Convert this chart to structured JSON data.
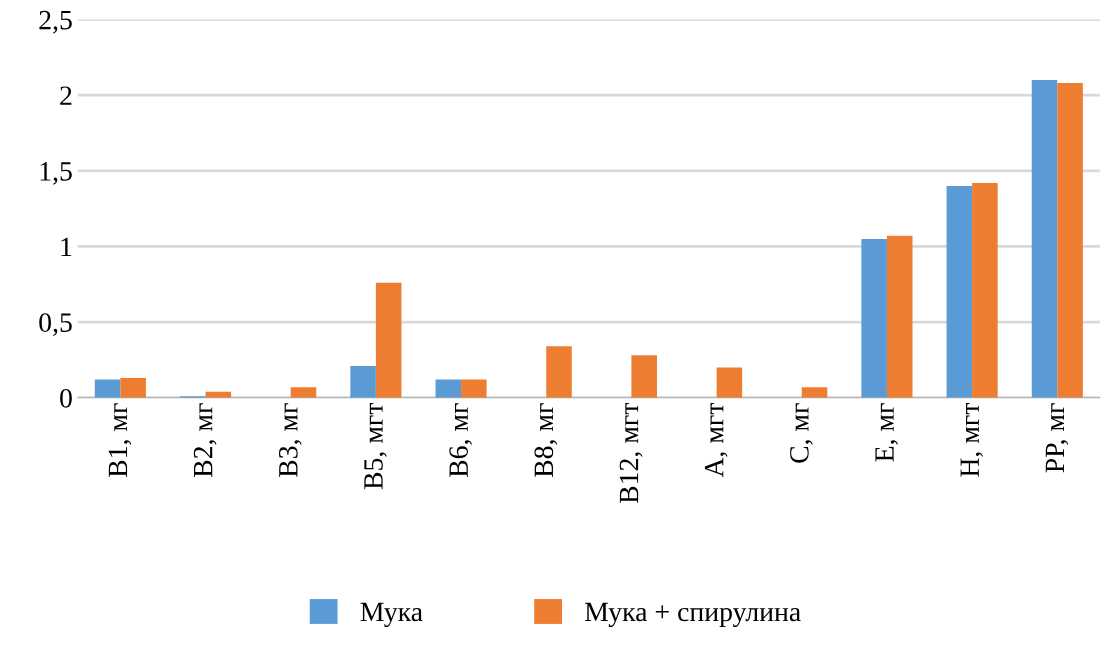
{
  "chart_data": {
    "type": "bar",
    "categories": [
      "B1, мг",
      "B2, мг",
      "B3, мг",
      "B5, мгт",
      "B6, мг",
      "B8, мг",
      "B12, мгт",
      "A, мгт",
      "C, мг",
      "E, мг",
      "H, мгт",
      "PP, мг"
    ],
    "series": [
      {
        "name": "Мука",
        "color": "#5b9bd5",
        "values": [
          0.12,
          0.01,
          0,
          0.21,
          0.12,
          0,
          0,
          0,
          0,
          1.05,
          1.4,
          2.1
        ]
      },
      {
        "name": "Мука + спирулина",
        "color": "#ed7d31",
        "values": [
          0.13,
          0.04,
          0.07,
          0.76,
          0.12,
          0.34,
          0.28,
          0.2,
          0.07,
          1.07,
          1.42,
          2.08
        ]
      }
    ],
    "ylim": [
      0,
      2.5
    ],
    "yticks": [
      0,
      {
        "value": 0.5,
        "label": "0,5"
      },
      1,
      {
        "value": 1.5,
        "label": "1,5"
      },
      2,
      {
        "value": 2.5,
        "label": "2,5"
      }
    ],
    "grid": "y",
    "legend": "bottom"
  }
}
